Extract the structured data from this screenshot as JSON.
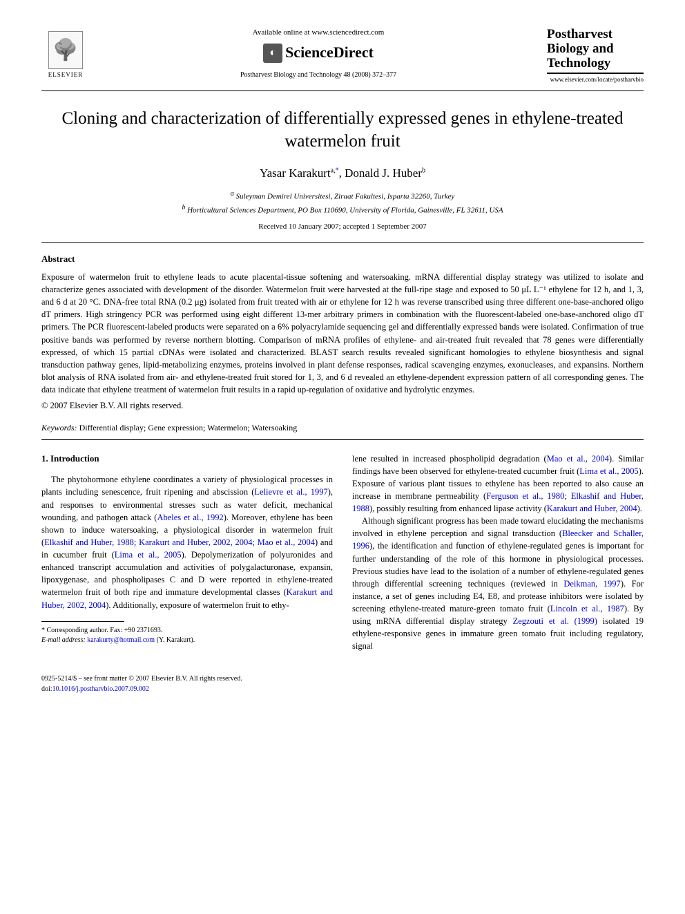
{
  "header": {
    "elsevier_label": "ELSEVIER",
    "available_text": "Available online at www.sciencedirect.com",
    "sd_brand": "ScienceDirect",
    "citation": "Postharvest Biology and Technology 48 (2008) 372–377",
    "journal_name_line1": "Postharvest",
    "journal_name_line2": "Biology and",
    "journal_name_line3": "Technology",
    "journal_url": "www.elsevier.com/locate/postharvbio"
  },
  "article": {
    "title": "Cloning and characterization of differentially expressed genes in ethylene-treated watermelon fruit",
    "authors": {
      "a1_name": "Yasar Karakurt",
      "a1_sup": "a,",
      "a1_corr": "*",
      "a2_name": "Donald J. Huber",
      "a2_sup": "b"
    },
    "affiliations": {
      "a": "Suleyman Demirel Universitesi, Ziraat Fakultesi, Isparta 32260, Turkey",
      "b": "Horticultural Sciences Department, PO Box 110690, University of Florida, Gainesville, FL 32611, USA"
    },
    "dates": "Received 10 January 2007; accepted 1 September 2007"
  },
  "abstract": {
    "heading": "Abstract",
    "text": "Exposure of watermelon fruit to ethylene leads to acute placental-tissue softening and watersoaking. mRNA differential display strategy was utilized to isolate and characterize genes associated with development of the disorder. Watermelon fruit were harvested at the full-ripe stage and exposed to 50 μL L⁻¹ ethylene for 12 h, and 1, 3, and 6 d at 20 °C. DNA-free total RNA (0.2 μg) isolated from fruit treated with air or ethylene for 12 h was reverse transcribed using three different one-base-anchored oligo dT primers. High stringency PCR was performed using eight different 13-mer arbitrary primers in combination with the fluorescent-labeled one-base-anchored oligo dT primers. The PCR fluorescent-labeled products were separated on a 6% polyacrylamide sequencing gel and differentially expressed bands were isolated. Confirmation of true positive bands was performed by reverse northern blotting. Comparison of mRNA profiles of ethylene- and air-treated fruit revealed that 78 genes were differentially expressed, of which 15 partial cDNAs were isolated and characterized. BLAST search results revealed significant homologies to ethylene biosynthesis and signal transduction pathway genes, lipid-metabolizing enzymes, proteins involved in plant defense responses, radical scavenging enzymes, exonucleases, and expansins. Northern blot analysis of RNA isolated from air- and ethylene-treated fruit stored for 1, 3, and 6 d revealed an ethylene-dependent expression pattern of all corresponding genes. The data indicate that ethylene treatment of watermelon fruit results in a rapid up-regulation of oxidative and hydrolytic enzymes.",
    "copyright": "© 2007 Elsevier B.V. All rights reserved."
  },
  "keywords": {
    "label": "Keywords:",
    "text": "Differential display; Gene expression; Watermelon; Watersoaking"
  },
  "intro": {
    "heading": "1. Introduction",
    "col1_frag1": "The phytohormone ethylene coordinates a variety of physiological processes in plants including senescence, fruit ripening and abscission (",
    "col1_ref1": "Lelievre et al., 1997",
    "col1_frag2": "), and responses to environmental stresses such as water deficit, mechanical wounding, and pathogen attack (",
    "col1_ref2": "Abeles et al., 1992",
    "col1_frag3": "). Moreover, ethylene has been shown to induce watersoaking, a physiological disorder in watermelon fruit (",
    "col1_ref3": "Elkashif and Huber, 1988; Karakurt and Huber, 2002, 2004; Mao et al., 2004",
    "col1_frag4": ") and in cucumber fruit (",
    "col1_ref4": "Lima et al., 2005",
    "col1_frag5": "). Depolymerization of polyuronides and enhanced transcript accumulation and activities of polygalacturonase, expansin, lipoxygenase, and phospholipases C and D were reported in ethylene-treated watermelon fruit of both ripe and immature developmental classes (",
    "col1_ref5": "Karakurt and Huber, 2002, 2004",
    "col1_frag6": "). Additionally, exposure of watermelon fruit to ethy-",
    "col2_frag1": "lene resulted in increased phospholipid degradation (",
    "col2_ref1": "Mao et al., 2004",
    "col2_frag2": "). Similar findings have been observed for ethylene-treated cucumber fruit (",
    "col2_ref2": "Lima et al., 2005",
    "col2_frag3": "). Exposure of various plant tissues to ethylene has been reported to also cause an increase in membrane permeability (",
    "col2_ref3": "Ferguson et al., 1980; Elkashif and Huber, 1988",
    "col2_frag4": "), possibly resulting from enhanced lipase activity (",
    "col2_ref4": "Karakurt and Huber, 2004",
    "col2_frag5": ").",
    "col2_p2_frag1": "Although significant progress has been made toward elucidating the mechanisms involved in ethylene perception and signal transduction (",
    "col2_p2_ref1": "Bleecker and Schaller, 1996",
    "col2_p2_frag2": "), the identification and function of ethylene-regulated genes is important for further understanding of the role of this hormone in physiological processes. Previous studies have lead to the isolation of a number of ethylene-regulated genes through differential screening techniques (reviewed in ",
    "col2_p2_ref2": "Deikman, 1997",
    "col2_p2_frag3": "). For instance, a set of genes including E4, E8, and protease inhibitors were isolated by screening ethylene-treated mature-green tomato fruit (",
    "col2_p2_ref3": "Lincoln et al., 1987",
    "col2_p2_frag4": "). By using mRNA differential display strategy ",
    "col2_p2_ref4": "Zegzouti et al. (1999)",
    "col2_p2_frag5": " isolated 19 ethylene-responsive genes in immature green tomato fruit including regulatory, signal"
  },
  "footnote": {
    "corr_label": "* Corresponding author. Fax: +90 2371693.",
    "email_label": "E-mail address:",
    "email": "karakurty@hotmail.com",
    "email_name": "(Y. Karakurt)."
  },
  "footer": {
    "line1": "0925-5214/$ – see front matter © 2007 Elsevier B.V. All rights reserved.",
    "line2_label": "doi:",
    "line2_doi": "10.1016/j.postharvbio.2007.09.002"
  },
  "colors": {
    "link": "#0000cc",
    "text": "#000000",
    "bg": "#ffffff"
  }
}
